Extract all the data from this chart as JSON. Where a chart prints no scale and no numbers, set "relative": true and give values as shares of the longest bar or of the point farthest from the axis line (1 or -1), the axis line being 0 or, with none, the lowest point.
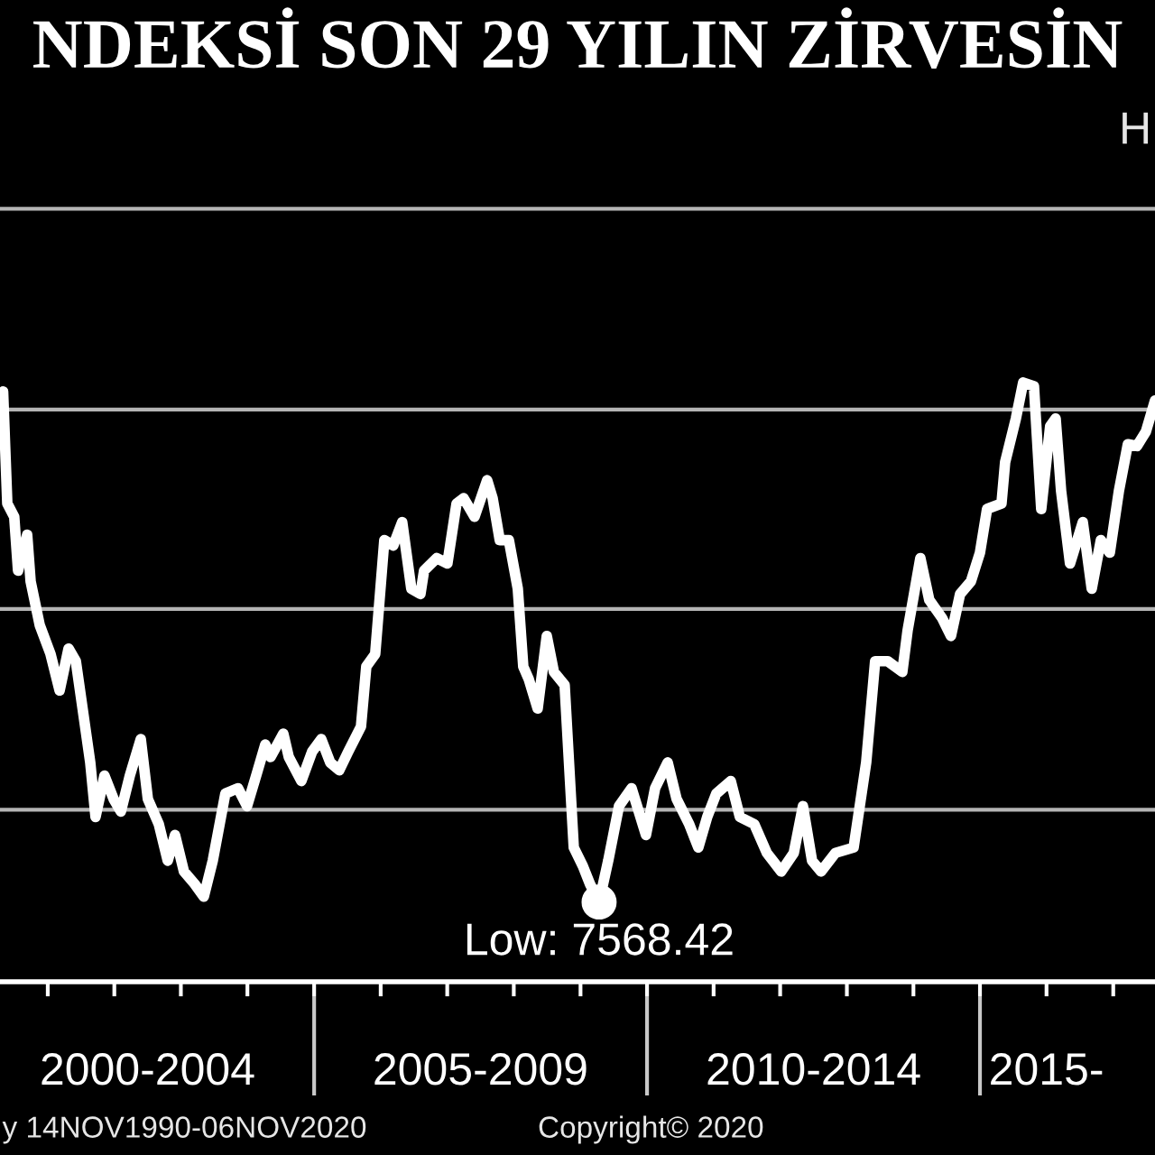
{
  "chart_data": {
    "type": "line",
    "title": "NDEKSİ SON 29 YILIN ZİRVESİN",
    "relative": true,
    "color": "#ffffff",
    "x": [
      "2000-05-01",
      "2000-05-24",
      "2000-07-01",
      "2000-07-22",
      "2000-09-10",
      "2000-09-29",
      "2000-11-18",
      "2001-01-16",
      "2001-03-07",
      "2001-04-25",
      "2001-06-04",
      "2001-08-22",
      "2001-09-20",
      "2001-11-08",
      "2001-12-28",
      "2002-02-06",
      "2002-03-27",
      "2002-05-26",
      "2002-07-04",
      "2002-09-02",
      "2002-10-21",
      "2002-11-30",
      "2003-01-18",
      "2003-03-18",
      "2003-05-07",
      "2003-06-25",
      "2003-09-02",
      "2003-11-10",
      "2003-12-30",
      "2004-02-18",
      "2004-04-08",
      "2004-05-07",
      "2004-07-16",
      "2004-08-15",
      "2004-10-23",
      "2004-12-21",
      "2005-02-09",
      "2005-03-30",
      "2005-05-19",
      "2005-07-07",
      "2005-09-15",
      "2005-10-14",
      "2005-12-02",
      "2006-01-21",
      "2006-03-11",
      "2006-04-29",
      "2006-06-18",
      "2006-08-07",
      "2006-08-27",
      "2006-11-04",
      "2007-01-02",
      "2007-02-21",
      "2007-04-01",
      "2007-05-31",
      "2007-08-08",
      "2007-09-07",
      "2007-10-16",
      "2007-12-05",
      "2008-01-23",
      "2008-02-22",
      "2008-03-23",
      "2008-05-11",
      "2008-06-30",
      "2008-08-08",
      "2008-10-06",
      "2008-11-25",
      "2009-01-14",
      "2009-02-22",
      "2009-04-13",
      "2009-06-02",
      "2009-07-31",
      "2009-10-08",
      "2009-12-26",
      "2010-02-14",
      "2010-04-24",
      "2010-06-12",
      "2010-08-20",
      "2010-10-09",
      "2010-11-27",
      "2011-01-16",
      "2011-04-05",
      "2011-05-25",
      "2011-08-12",
      "2011-10-20",
      "2012-01-07",
      "2012-03-16",
      "2012-05-05",
      "2012-06-24",
      "2012-08-12",
      "2012-10-30",
      "2013-02-07",
      "2013-04-17",
      "2013-06-05",
      "2013-08-13",
      "2013-11-01",
      "2013-11-30",
      "2014-02-08",
      "2014-03-29",
      "2014-06-07",
      "2014-07-26",
      "2014-09-14",
      "2014-11-12",
      "2015-01-01",
      "2015-02-09",
      "2015-04-29",
      "2015-05-19",
      "2015-07-17",
      "2015-08-26",
      "2015-10-24",
      "2015-12-03",
      "2016-01-21",
      "2016-02-20",
      "2016-03-21",
      "2016-05-09",
      "2016-07-18",
      "2016-09-05",
      "2016-10-25",
      "2016-12-13",
      "2017-02-01",
      "2017-03-22",
      "2017-05-11",
      "2017-06-29",
      "2017-08-18"
    ],
    "values": [
      0.985,
      0.798,
      0.776,
      0.686,
      0.746,
      0.668,
      0.595,
      0.547,
      0.486,
      0.556,
      0.535,
      0.366,
      0.275,
      0.344,
      0.305,
      0.284,
      0.344,
      0.405,
      0.305,
      0.263,
      0.202,
      0.245,
      0.184,
      0.163,
      0.142,
      0.202,
      0.314,
      0.323,
      0.293,
      0.344,
      0.396,
      0.375,
      0.414,
      0.375,
      0.335,
      0.384,
      0.405,
      0.366,
      0.353,
      0.384,
      0.426,
      0.526,
      0.547,
      0.737,
      0.728,
      0.767,
      0.656,
      0.647,
      0.686,
      0.707,
      0.698,
      0.798,
      0.807,
      0.776,
      0.837,
      0.807,
      0.737,
      0.737,
      0.656,
      0.526,
      0.505,
      0.456,
      0.577,
      0.517,
      0.495,
      0.224,
      0.193,
      0.163,
      0.133,
      0.202,
      0.293,
      0.323,
      0.245,
      0.323,
      0.366,
      0.305,
      0.263,
      0.224,
      0.275,
      0.314,
      0.335,
      0.275,
      0.263,
      0.215,
      0.184,
      0.215,
      0.293,
      0.202,
      0.184,
      0.215,
      0.224,
      0.366,
      0.535,
      0.535,
      0.517,
      0.586,
      0.707,
      0.637,
      0.607,
      0.577,
      0.647,
      0.668,
      0.716,
      0.789,
      0.798,
      0.867,
      0.94,
      1.0,
      0.994,
      0.789,
      0.927,
      0.94,
      0.819,
      0.698,
      0.767,
      0.656,
      0.737,
      0.716,
      0.819,
      0.897,
      0.894,
      0.918,
      0.97
    ],
    "xlim": [
      "2000-04-14",
      "2017-08-18"
    ],
    "xticks": [
      {
        "value": "2001-01-01",
        "label": null
      },
      {
        "value": "2002-01-01",
        "label": null
      },
      {
        "value": "2003-01-01",
        "label": null
      },
      {
        "value": "2004-01-01",
        "label": null
      },
      {
        "value": "2005-01-01",
        "label": null
      },
      {
        "value": "2006-01-01",
        "label": null
      },
      {
        "value": "2007-01-01",
        "label": null
      },
      {
        "value": "2008-01-01",
        "label": null
      },
      {
        "value": "2009-01-01",
        "label": null
      },
      {
        "value": "2010-01-01",
        "label": null
      },
      {
        "value": "2011-01-01",
        "label": null
      },
      {
        "value": "2012-01-01",
        "label": null
      },
      {
        "value": "2013-01-01",
        "label": null
      },
      {
        "value": "2014-01-01",
        "label": null
      },
      {
        "value": "2015-01-01",
        "label": null
      },
      {
        "value": "2016-01-01",
        "label": null
      },
      {
        "value": "2017-01-01",
        "label": null
      },
      {
        "value": "2002-07-02",
        "label": "2000-2004"
      },
      {
        "value": "2007-07-02",
        "label": "2005-2009"
      },
      {
        "value": "2012-07-02",
        "label": "2010-2014"
      },
      {
        "value": "2015-12-31",
        "label": "2015-"
      }
    ],
    "ref_lines": [
      {
        "axis": "y",
        "value": 1.29,
        "color": "#b4b4b4"
      },
      {
        "axis": "y",
        "value": 0.955,
        "color": "#b4b4b4"
      },
      {
        "axis": "y",
        "value": 0.622,
        "color": "#b4b4b4"
      },
      {
        "axis": "y",
        "value": 0.287,
        "color": "#b4b4b4"
      }
    ],
    "annotations": [
      {
        "text": "Low: 7568.42",
        "x": "2009-04-13",
        "y": 0.133
      },
      "H",
      "y 14NOV1990-06NOV2020",
      "Copyright© 2020"
    ]
  }
}
